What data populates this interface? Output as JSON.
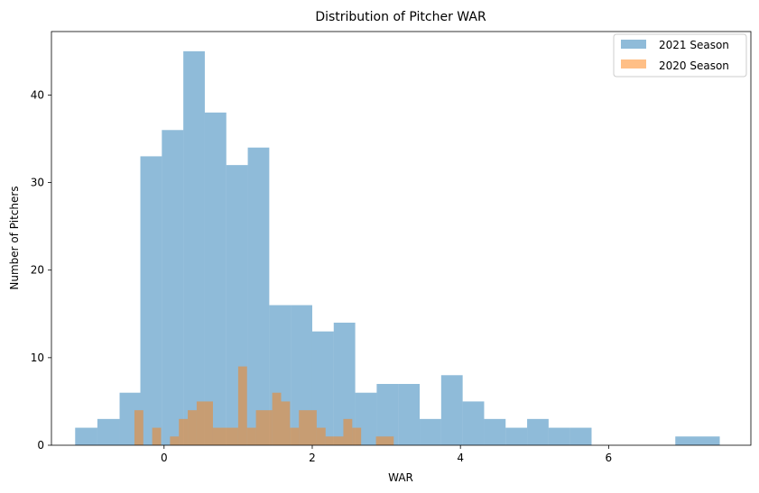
{
  "chart_data": {
    "type": "bar",
    "title": "Distribution of Pitcher WAR",
    "xlabel": "WAR",
    "ylabel": "Number of Pitchers",
    "xlim": [
      -1.52,
      7.92
    ],
    "ylim": [
      0,
      47.25
    ],
    "xticks": [
      0,
      2,
      4,
      6
    ],
    "yticks": [
      0,
      10,
      20,
      30,
      40
    ],
    "legend_position": "top-right",
    "series": [
      {
        "name": "2021 Season",
        "color": "#1f77b4",
        "opacity": 0.5,
        "bins": [
          {
            "x0": -1.2,
            "x1": -0.9,
            "count": 2
          },
          {
            "x0": -0.9,
            "x1": -0.6,
            "count": 3
          },
          {
            "x0": -0.6,
            "x1": -0.32,
            "count": 6
          },
          {
            "x0": -0.32,
            "x1": -0.03,
            "count": 33
          },
          {
            "x0": -0.03,
            "x1": 0.26,
            "count": 36
          },
          {
            "x0": 0.26,
            "x1": 0.55,
            "count": 45
          },
          {
            "x0": 0.55,
            "x1": 0.84,
            "count": 38
          },
          {
            "x0": 0.84,
            "x1": 1.13,
            "count": 32
          },
          {
            "x0": 1.13,
            "x1": 1.42,
            "count": 34
          },
          {
            "x0": 1.42,
            "x1": 1.71,
            "count": 16
          },
          {
            "x0": 1.71,
            "x1": 2.0,
            "count": 16
          },
          {
            "x0": 2.0,
            "x1": 2.29,
            "count": 13
          },
          {
            "x0": 2.29,
            "x1": 2.58,
            "count": 14
          },
          {
            "x0": 2.58,
            "x1": 2.87,
            "count": 6
          },
          {
            "x0": 2.87,
            "x1": 3.16,
            "count": 7
          },
          {
            "x0": 3.16,
            "x1": 3.45,
            "count": 7
          },
          {
            "x0": 3.45,
            "x1": 3.74,
            "count": 3
          },
          {
            "x0": 3.74,
            "x1": 4.03,
            "count": 8
          },
          {
            "x0": 4.03,
            "x1": 4.32,
            "count": 5
          },
          {
            "x0": 4.32,
            "x1": 4.61,
            "count": 3
          },
          {
            "x0": 4.61,
            "x1": 4.9,
            "count": 2
          },
          {
            "x0": 4.9,
            "x1": 5.19,
            "count": 3
          },
          {
            "x0": 5.19,
            "x1": 5.48,
            "count": 2
          },
          {
            "x0": 5.48,
            "x1": 5.77,
            "count": 2
          },
          {
            "x0": 6.9,
            "x1": 7.5,
            "count": 1
          }
        ]
      },
      {
        "name": "2020 Season",
        "color": "#ff7f0e",
        "opacity": 0.5,
        "bins": [
          {
            "x0": -0.4,
            "x1": -0.28,
            "count": 4
          },
          {
            "x0": -0.16,
            "x1": -0.04,
            "count": 2
          },
          {
            "x0": 0.08,
            "x1": 0.2,
            "count": 1
          },
          {
            "x0": 0.2,
            "x1": 0.32,
            "count": 3
          },
          {
            "x0": 0.32,
            "x1": 0.44,
            "count": 4
          },
          {
            "x0": 0.44,
            "x1": 0.66,
            "count": 5
          },
          {
            "x0": 0.66,
            "x1": 1.0,
            "count": 2
          },
          {
            "x0": 1.0,
            "x1": 1.12,
            "count": 9
          },
          {
            "x0": 1.12,
            "x1": 1.24,
            "count": 2
          },
          {
            "x0": 1.24,
            "x1": 1.46,
            "count": 4
          },
          {
            "x0": 1.46,
            "x1": 1.58,
            "count": 6
          },
          {
            "x0": 1.58,
            "x1": 1.7,
            "count": 5
          },
          {
            "x0": 1.7,
            "x1": 1.82,
            "count": 2
          },
          {
            "x0": 1.82,
            "x1": 2.06,
            "count": 4
          },
          {
            "x0": 2.06,
            "x1": 2.18,
            "count": 2
          },
          {
            "x0": 2.18,
            "x1": 2.42,
            "count": 1
          },
          {
            "x0": 2.42,
            "x1": 2.54,
            "count": 3
          },
          {
            "x0": 2.54,
            "x1": 2.66,
            "count": 2
          },
          {
            "x0": 2.86,
            "x1": 3.1,
            "count": 1
          }
        ]
      }
    ]
  }
}
